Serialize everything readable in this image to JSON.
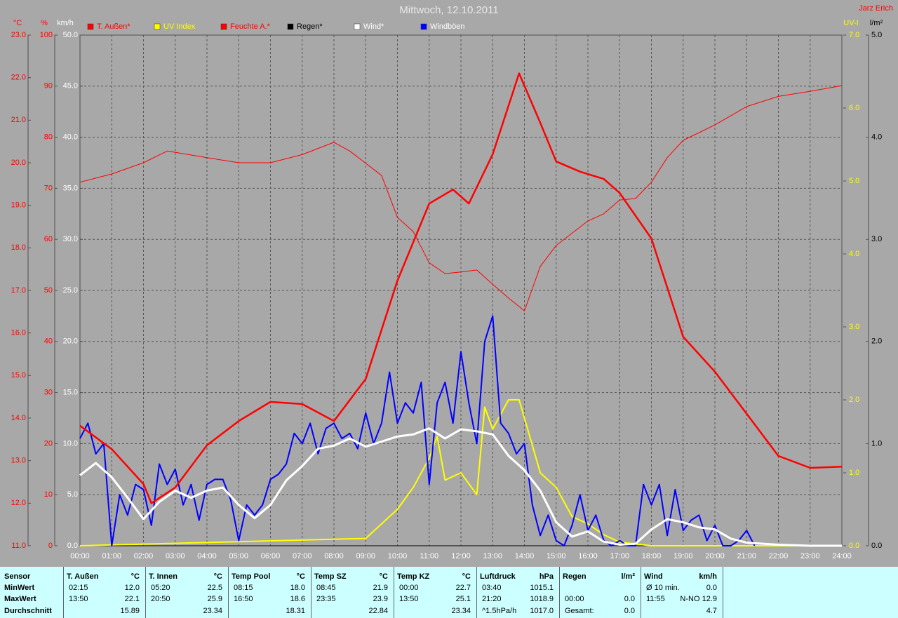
{
  "chart_data": {
    "type": "line",
    "title": "Mittwoch, 12.10.2011",
    "annotation": "Jarz Erich",
    "xlim": [
      0,
      24
    ],
    "xticks": [
      {
        "value": 0,
        "label": "00:00"
      },
      {
        "value": 1,
        "label": "01:00"
      },
      {
        "value": 2,
        "label": "02:00"
      },
      {
        "value": 3,
        "label": "03:00"
      },
      {
        "value": 4,
        "label": "04:00"
      },
      {
        "value": 5,
        "label": "05:00"
      },
      {
        "value": 6,
        "label": "06:00"
      },
      {
        "value": 7,
        "label": "07:00"
      },
      {
        "value": 8,
        "label": "08:00"
      },
      {
        "value": 9,
        "label": "09:00"
      },
      {
        "value": 10,
        "label": "10:00"
      },
      {
        "value": 11,
        "label": "11:00"
      },
      {
        "value": 12,
        "label": "12:00"
      },
      {
        "value": 13,
        "label": "13:00"
      },
      {
        "value": 14,
        "label": "14:00"
      },
      {
        "value": 15,
        "label": "15:00"
      },
      {
        "value": 16,
        "label": "16:00"
      },
      {
        "value": 17,
        "label": "17:00"
      },
      {
        "value": 18,
        "label": "18:00"
      },
      {
        "value": 19,
        "label": "19:00"
      },
      {
        "value": 20,
        "label": "20:00"
      },
      {
        "value": 21,
        "label": "21:00"
      },
      {
        "value": 22,
        "label": "22:00"
      },
      {
        "value": 23,
        "label": "23:00"
      },
      {
        "value": 24,
        "label": "24:00"
      }
    ],
    "grid": true,
    "axes": [
      {
        "label": "°C",
        "color": "#ff0000",
        "ylim": [
          11,
          23
        ],
        "yticks": [
          {
            "value": 11,
            "label": "11.0"
          },
          {
            "value": 12,
            "label": "12.0"
          },
          {
            "value": 13,
            "label": "13.0"
          },
          {
            "value": 14,
            "label": "14.0"
          },
          {
            "value": 15,
            "label": "15.0"
          },
          {
            "value": 16,
            "label": "16.0"
          },
          {
            "value": 17,
            "label": "17.0"
          },
          {
            "value": 18,
            "label": "18.0"
          },
          {
            "value": 19,
            "label": "19.0"
          },
          {
            "value": 20,
            "label": "20.0"
          },
          {
            "value": 21,
            "label": "21.0"
          },
          {
            "value": 22,
            "label": "22.0"
          },
          {
            "value": 23,
            "label": "23.0"
          }
        ]
      },
      {
        "label": "%",
        "color": "#ff0000",
        "ylim": [
          0,
          100
        ],
        "yticks": [
          0,
          10,
          20,
          30,
          40,
          50,
          60,
          70,
          80,
          90,
          100
        ]
      },
      {
        "label": "km/h",
        "color": "#ffffff",
        "ylim": [
          0,
          50
        ],
        "yticks": [
          {
            "value": 0,
            "label": "0.0"
          },
          {
            "value": 5,
            "label": "5.0"
          },
          {
            "value": 10,
            "label": "10.0"
          },
          {
            "value": 15,
            "label": "15.0"
          },
          {
            "value": 20,
            "label": "20.0"
          },
          {
            "value": 25,
            "label": "25.0"
          },
          {
            "value": 30,
            "label": "30.0"
          },
          {
            "value": 35,
            "label": "35.0"
          },
          {
            "value": 40,
            "label": "40.0"
          },
          {
            "value": 45,
            "label": "45.0"
          },
          {
            "value": 50,
            "label": "50.0"
          }
        ]
      },
      {
        "label": "UV-I",
        "color": "#ffff00",
        "ylim": [
          0,
          7
        ],
        "yticks": [
          {
            "value": 0,
            "label": "0.0"
          },
          {
            "value": 1,
            "label": "1.0"
          },
          {
            "value": 2,
            "label": "2.0"
          },
          {
            "value": 3,
            "label": "3.0"
          },
          {
            "value": 4,
            "label": "4.0"
          },
          {
            "value": 5,
            "label": "5.0"
          },
          {
            "value": 6,
            "label": "6.0"
          },
          {
            "value": 7,
            "label": "7.0"
          }
        ]
      },
      {
        "label": "l/m²",
        "color": "#000000",
        "ylim": [
          0,
          5
        ],
        "yticks": [
          {
            "value": 0,
            "label": "0.0"
          },
          {
            "value": 1,
            "label": "1.0"
          },
          {
            "value": 2,
            "label": "2.0"
          },
          {
            "value": 3,
            "label": "3.0"
          },
          {
            "value": 4,
            "label": "4.0"
          },
          {
            "value": 5,
            "label": "5.0"
          }
        ]
      }
    ],
    "series": [
      {
        "name": "T. Außen*",
        "color": "#ff0000",
        "legend_text_color": "#ff0000",
        "axis": 0,
        "x": [
          0,
          1,
          2,
          2.25,
          3,
          4,
          5,
          6,
          7,
          8,
          9,
          10,
          11,
          11.75,
          12.25,
          13,
          13.833,
          14.5,
          15,
          15.75,
          16.5,
          17,
          18,
          19,
          20,
          21,
          22,
          23,
          24
        ],
        "values": [
          13.82,
          13.27,
          12.45,
          12.0,
          12.37,
          13.36,
          13.93,
          14.38,
          14.33,
          13.93,
          14.92,
          17.23,
          19.04,
          19.37,
          19.04,
          20.2,
          22.1,
          20.94,
          20.03,
          19.79,
          19.62,
          19.29,
          18.22,
          15.91,
          15.09,
          14.1,
          13.11,
          12.83,
          12.86
        ]
      },
      {
        "name": "UV Index",
        "color": "#ffff00",
        "legend_text_color": "#ffff00",
        "axis": 3,
        "x": [
          0,
          9,
          9.5,
          10,
          10.5,
          11,
          11.25,
          11.5,
          12,
          12.5,
          12.75,
          13,
          13.25,
          13.5,
          13.833,
          14.167,
          14.5,
          15,
          15.5,
          16,
          16.5,
          17,
          18,
          24
        ],
        "values": [
          0,
          0.1,
          0.3,
          0.5,
          0.8,
          1.2,
          1.5,
          0.9,
          1.0,
          0.7,
          1.9,
          1.6,
          1.8,
          2.0,
          2.0,
          1.5,
          1.0,
          0.8,
          0.4,
          0.3,
          0.15,
          0.05,
          0,
          0
        ]
      },
      {
        "name": "Feuchte A.*",
        "color": "#ff0000",
        "legend_text_color": "#ff0000",
        "axis": 1,
        "x": [
          0,
          1,
          2,
          2.75,
          4,
          5,
          6,
          7,
          8,
          8.5,
          9.5,
          10,
          10.5,
          11,
          11.5,
          12,
          12.5,
          13,
          13.5,
          14,
          14.5,
          15,
          16,
          16.5,
          17,
          17.5,
          18,
          18.5,
          19,
          20,
          21,
          22,
          23,
          24
        ],
        "values": [
          71.2,
          72.8,
          75,
          77.3,
          76,
          75,
          75,
          76.6,
          79,
          77.3,
          72.5,
          64.3,
          61.5,
          55.4,
          53.3,
          53.6,
          54,
          51.2,
          48.5,
          46,
          54.7,
          58.8,
          63.6,
          65,
          67.7,
          68,
          71.2,
          76,
          79.4,
          82.4,
          86,
          88,
          89,
          90.1
        ]
      },
      {
        "name": "Regen*",
        "color": "#000000",
        "legend_text_color": "#000000",
        "axis": 4,
        "x": [
          0,
          24
        ],
        "values": [
          0,
          0
        ]
      },
      {
        "name": "Wind*",
        "color": "#ffffff",
        "legend_text_color": "#ffffff",
        "axis": 2,
        "x": [
          0,
          0.5,
          1,
          1.5,
          2,
          2.5,
          3,
          3.5,
          4,
          4.5,
          5,
          5.5,
          6,
          6.5,
          7,
          7.5,
          8,
          8.5,
          9,
          9.5,
          10,
          10.5,
          11,
          11.5,
          12,
          12.5,
          13,
          13.5,
          14,
          14.5,
          15,
          15.5,
          16,
          16.5,
          17,
          17.5,
          18,
          18.5,
          19,
          19.5,
          20,
          20.5,
          21,
          22,
          23,
          24
        ],
        "values": [
          6.9,
          8.1,
          6.7,
          4.7,
          2.6,
          4.3,
          5.4,
          4.7,
          5.4,
          5.7,
          4.0,
          2.7,
          4.0,
          6.4,
          7.8,
          9.5,
          9.8,
          10.5,
          9.7,
          10.2,
          10.7,
          10.9,
          11.5,
          10.5,
          11.4,
          11.2,
          10.9,
          8.8,
          7.4,
          5.4,
          2.3,
          0.9,
          1.4,
          0.4,
          0.1,
          0.2,
          1.6,
          2.6,
          2.3,
          1.8,
          1.6,
          0.7,
          0.3,
          0.1,
          0,
          0
        ]
      },
      {
        "name": "Windböen",
        "color": "#0000ff",
        "legend_text_color": "#ffffff",
        "axis": 2,
        "x": [
          0,
          0.25,
          0.5,
          0.75,
          1,
          1.25,
          1.5,
          1.75,
          2,
          2.25,
          2.5,
          2.75,
          3,
          3.25,
          3.5,
          3.75,
          4,
          4.25,
          4.5,
          4.75,
          5,
          5.25,
          5.5,
          5.75,
          6,
          6.25,
          6.5,
          6.75,
          7,
          7.25,
          7.5,
          7.75,
          8,
          8.25,
          8.5,
          8.75,
          9,
          9.25,
          9.5,
          9.75,
          10,
          10.25,
          10.5,
          10.75,
          11,
          11.25,
          11.5,
          11.75,
          12,
          12.25,
          12.5,
          12.75,
          13,
          13.25,
          13.5,
          13.75,
          14,
          14.25,
          14.5,
          14.75,
          15,
          15.25,
          15.5,
          15.75,
          16,
          16.25,
          16.5,
          16.75,
          17,
          17.25,
          17.5,
          17.75,
          18,
          18.25,
          18.5,
          18.75,
          19,
          19.25,
          19.5,
          19.75,
          20,
          20.25,
          20.5,
          20.75,
          21,
          21.25
        ],
        "values": [
          10.5,
          12.0,
          9.0,
          10.0,
          0.0,
          5.0,
          3.0,
          6.0,
          5.5,
          2.0,
          8.0,
          6.0,
          7.5,
          4.0,
          6.0,
          2.5,
          6.0,
          6.5,
          6.5,
          4.5,
          0.5,
          4.0,
          3.0,
          4.0,
          6.5,
          7.0,
          8.0,
          11.0,
          10.0,
          12.0,
          9.0,
          11.5,
          12.0,
          10.5,
          11.0,
          9.5,
          13.0,
          10.0,
          12.0,
          17.0,
          12.0,
          14.0,
          13.0,
          16.0,
          6.0,
          14.0,
          16.0,
          12.0,
          19.0,
          14.0,
          10.0,
          20.0,
          22.5,
          12.0,
          11.0,
          9.0,
          10.0,
          4.0,
          1.0,
          3.0,
          0.5,
          0.0,
          2.0,
          5.0,
          1.5,
          3.0,
          0.5,
          0.0,
          0.5,
          0.0,
          0.0,
          6.0,
          4.0,
          6.0,
          1.0,
          5.5,
          1.5,
          2.5,
          3.0,
          0.5,
          2.0,
          0.0,
          0.0,
          0.5,
          1.5,
          0.0
        ]
      }
    ]
  },
  "table": {
    "row_labels": [
      "Sensor",
      "MinWert",
      "MaxWert",
      "Durchschnitt"
    ],
    "groups": [
      {
        "name": "T. Außen",
        "unit": "°C",
        "cells": [
          {
            "time": "02:15",
            "value": "12.0"
          },
          {
            "time": "13:50",
            "value": "22.1"
          },
          {
            "value": "15.89"
          }
        ]
      },
      {
        "name": "T. Innen",
        "unit": "°C",
        "cells": [
          {
            "time": "05:20",
            "value": "22.5"
          },
          {
            "time": "20:50",
            "value": "25.9"
          },
          {
            "value": "23.34"
          }
        ]
      },
      {
        "name": "Temp Pool",
        "unit": "°C",
        "cells": [
          {
            "time": "08:15",
            "value": "18.0"
          },
          {
            "time": "16:50",
            "value": "18.6"
          },
          {
            "value": "18.31"
          }
        ]
      },
      {
        "name": "Temp SZ",
        "unit": "°C",
        "cells": [
          {
            "time": "08:45",
            "value": "21.9"
          },
          {
            "time": "23:35",
            "value": "23.9"
          },
          {
            "value": "22.84"
          }
        ]
      },
      {
        "name": "Temp KZ",
        "unit": "°C",
        "cells": [
          {
            "time": "00:00",
            "value": "22.7"
          },
          {
            "time": "13:50",
            "value": "25.1"
          },
          {
            "value": "23.34"
          }
        ]
      },
      {
        "name": "Luftdruck",
        "unit": "hPa",
        "cells": [
          {
            "time": "03:40",
            "value": "1015.1"
          },
          {
            "time": "21:20",
            "value": "1018.9"
          },
          {
            "time": "^1.5hPa/h",
            "value": "1017.0"
          }
        ]
      },
      {
        "name": "Regen",
        "unit": "l/m²",
        "cells": [
          null,
          {
            "time": "00:00",
            "value": "0.0"
          },
          {
            "time": "Gesamt:",
            "value": "0.0"
          }
        ]
      },
      {
        "name": "Wind",
        "unit": "km/h",
        "cells": [
          {
            "time": "Ø 10 min.",
            "value": "0.0"
          },
          {
            "time": "11:55",
            "value": "N-NO 12.9"
          },
          {
            "value": "4.7"
          }
        ]
      }
    ]
  }
}
